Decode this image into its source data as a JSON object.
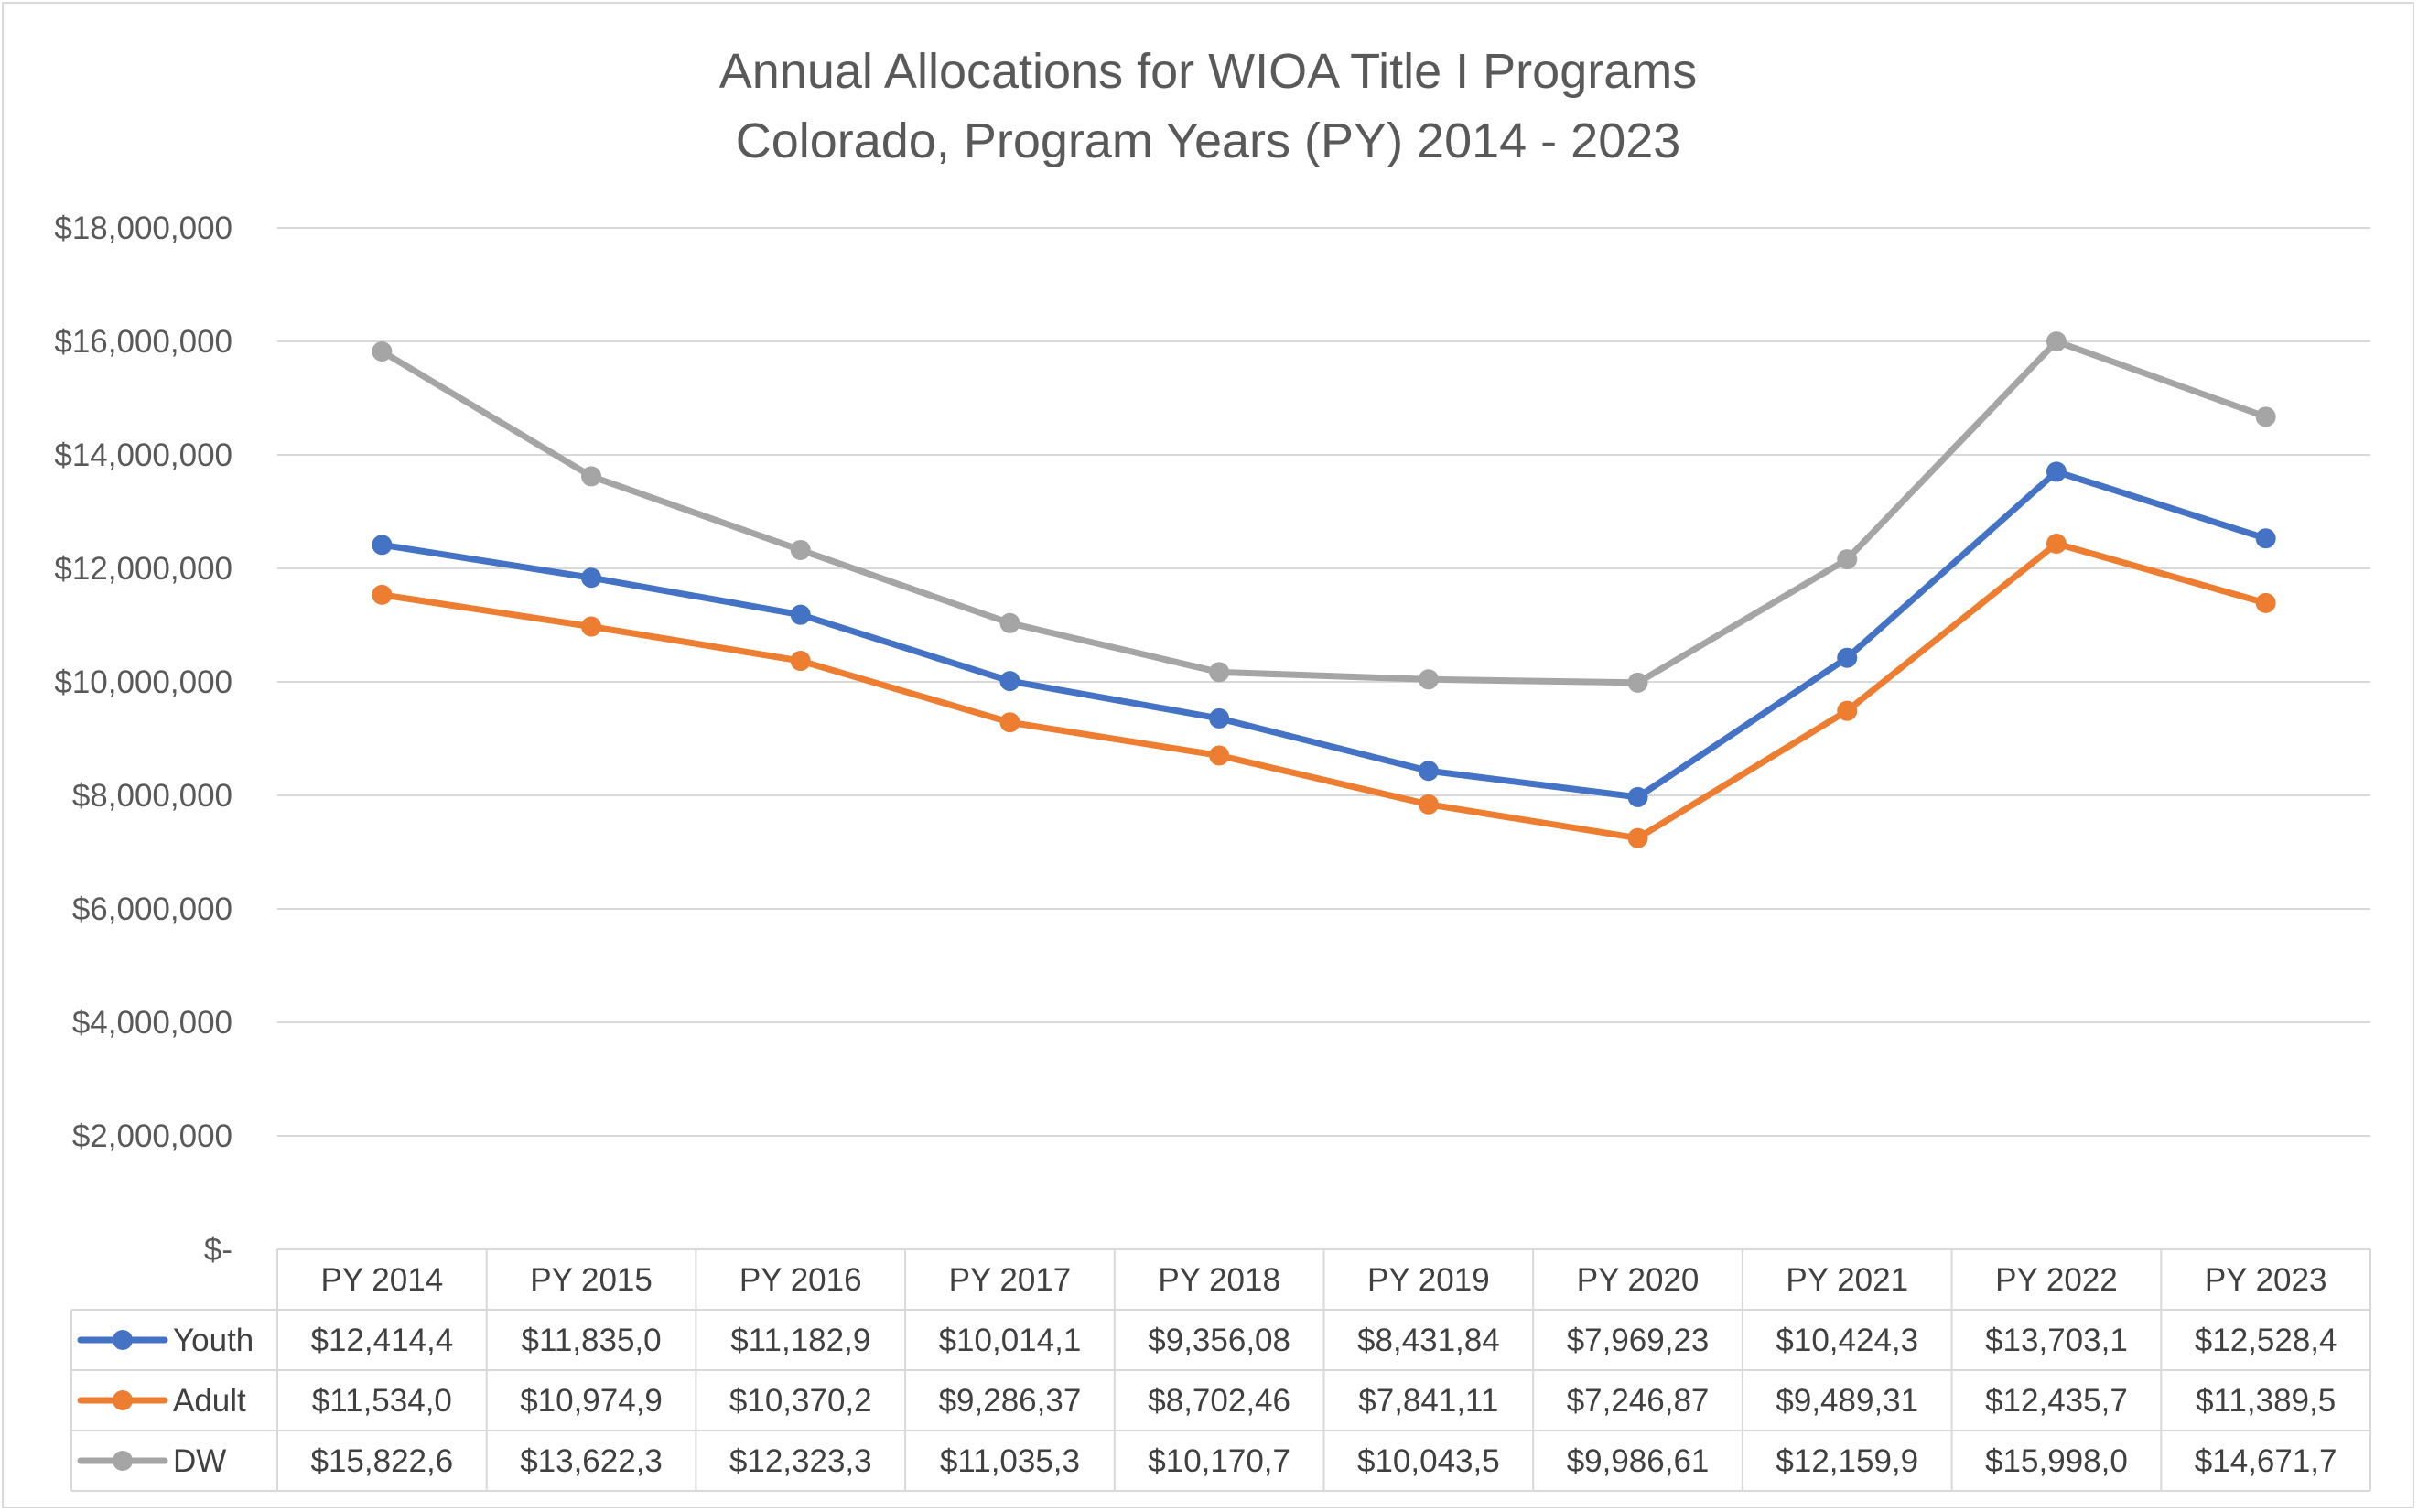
{
  "chart_data": {
    "type": "line",
    "title": "Annual Allocations for WIOA Title I Programs",
    "subtitle": "Colorado, Program Years (PY) 2014 - 2023",
    "categories": [
      "PY 2014",
      "PY 2015",
      "PY 2016",
      "PY 2017",
      "PY 2018",
      "PY 2019",
      "PY 2020",
      "PY 2021",
      "PY 2022",
      "PY 2023"
    ],
    "ylim": [
      0,
      18000000
    ],
    "y_ticks": [
      "$18,000,000",
      "$16,000,000",
      "$14,000,000",
      "$12,000,000",
      "$10,000,000",
      "$8,000,000",
      "$6,000,000",
      "$4,000,000",
      "$2,000,000",
      "$-"
    ],
    "grid": true,
    "legend_placement": "data table (left)",
    "series": [
      {
        "name": "Youth",
        "color": "#4472c4",
        "values": [
          12414400,
          11835000,
          11182900,
          10014100,
          9356080,
          8431840,
          7969230,
          10424300,
          13703100,
          12528400
        ],
        "table_labels": [
          "$12,414,4",
          "$11,835,0",
          "$11,182,9",
          "$10,014,1",
          "$9,356,08",
          "$8,431,84",
          "$7,969,23",
          "$10,424,3",
          "$13,703,1",
          "$12,528,4"
        ]
      },
      {
        "name": "Adult",
        "color": "#ed7d31",
        "values": [
          11534000,
          10974900,
          10370200,
          9286370,
          8702460,
          7841110,
          7246870,
          9489310,
          12435700,
          11389500
        ],
        "table_labels": [
          "$11,534,0",
          "$10,974,9",
          "$10,370,2",
          "$9,286,37",
          "$8,702,46",
          "$7,841,11",
          "$7,246,87",
          "$9,489,31",
          "$12,435,7",
          "$11,389,5"
        ]
      },
      {
        "name": "DW",
        "color": "#a5a5a5",
        "values": [
          15822600,
          13622300,
          12323300,
          11035300,
          10170700,
          10043500,
          9986610,
          12159900,
          15998000,
          14671700
        ],
        "table_labels": [
          "$15,822,6",
          "$13,622,3",
          "$12,323,3",
          "$11,035,3",
          "$10,170,7",
          "$10,043,5",
          "$9,986,61",
          "$12,159,9",
          "$15,998,0",
          "$14,671,7"
        ]
      }
    ]
  }
}
